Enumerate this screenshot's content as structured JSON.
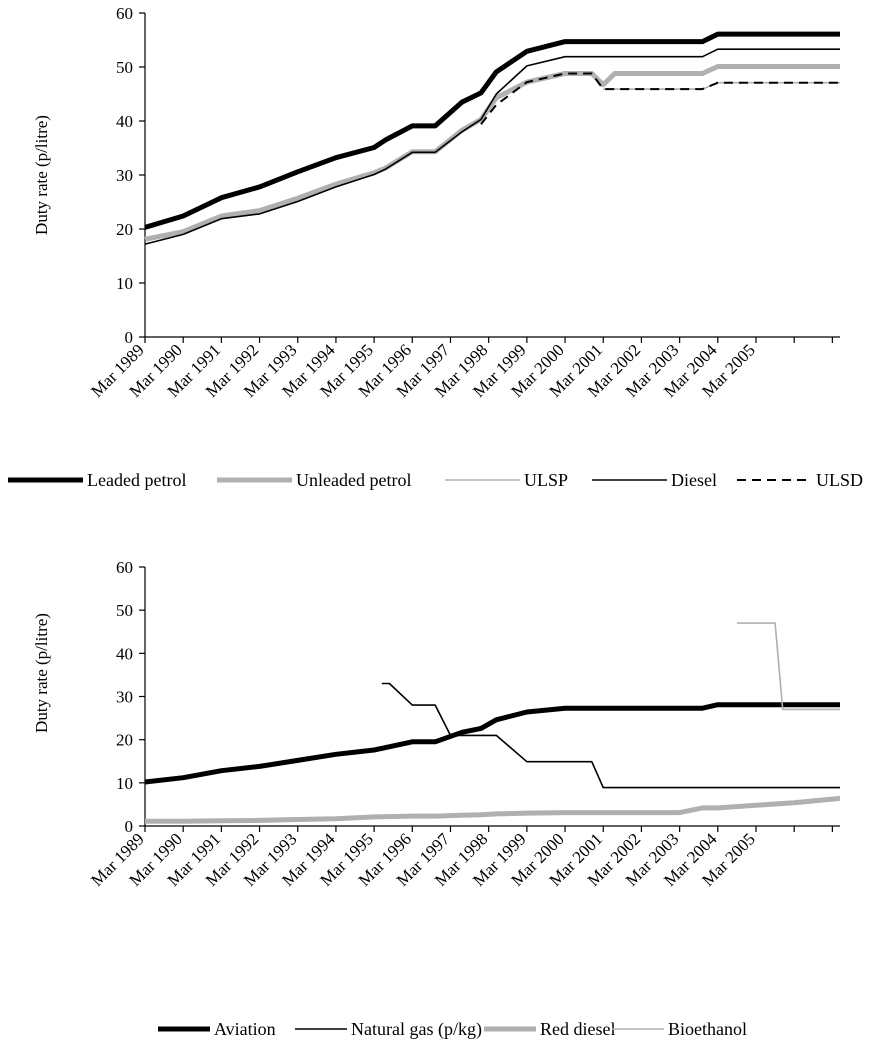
{
  "chart_data": [
    {
      "type": "line",
      "title": "",
      "xlabel": "",
      "ylabel": "Duty rate (p/litre)",
      "ylim": [
        0,
        60
      ],
      "yticks": [
        0,
        10,
        20,
        30,
        40,
        50,
        60
      ],
      "xlim": [
        1989,
        2007.2
      ],
      "categories": [
        "Mar 1989",
        "Mar 1990",
        "Mar 1991",
        "Mar 1992",
        "Mar 1993",
        "Mar 1994",
        "Mar 1995",
        "Mar 1996",
        "Mar 1997",
        "Mar 1998",
        "Mar 1999",
        "Mar 2000",
        "Mar 2001",
        "Mar 2002",
        "Mar 2003",
        "Mar 2004",
        "Mar 2005"
      ],
      "legend_position": "bottom",
      "series": [
        {
          "name": "Leaded petrol",
          "color": "#000000",
          "width": 5,
          "dash": "",
          "x": [
            1989,
            1990,
            1991,
            1992,
            1993,
            1994,
            1995,
            1995.3,
            1996,
            1996.6,
            1997.3,
            1997.8,
            1998.2,
            1999,
            2000,
            2001,
            2002,
            2003.6,
            2004,
            2007.2
          ],
          "y": [
            20.3,
            22.4,
            25.8,
            27.8,
            30.6,
            33.2,
            35.1,
            36.5,
            39.1,
            39.1,
            43.5,
            45.2,
            49.1,
            52.9,
            54.7,
            54.7,
            54.7,
            54.7,
            56.1,
            56.1
          ]
        },
        {
          "name": "Unleaded petrol",
          "color": "#b0b0b0",
          "width": 5,
          "dash": "",
          "x": [
            1989,
            1990,
            1991,
            1992,
            1993,
            1994,
            1995,
            1995.3,
            1996,
            1996.6,
            1997.3,
            1997.8,
            1998.2,
            1999,
            2000,
            2000.7,
            2001,
            2001.3,
            2003.6,
            2004,
            2007.2
          ],
          "y": [
            18.1,
            19.5,
            22.4,
            23.4,
            25.7,
            28.3,
            30.4,
            31.3,
            34.3,
            34.3,
            38.3,
            40.3,
            44.3,
            47.2,
            48.8,
            48.8,
            46.7,
            48.8,
            48.8,
            50.1,
            50.1
          ]
        },
        {
          "name": "ULSP",
          "color": "#b0b0b0",
          "width": 1.6,
          "dash": "",
          "x": [
            2001,
            2001.3,
            2003.6,
            2004,
            2007.2
          ],
          "y": [
            45.9,
            45.9,
            45.9,
            47.1,
            47.1
          ]
        },
        {
          "name": "Diesel",
          "color": "#000000",
          "width": 1.6,
          "dash": "",
          "x": [
            1989,
            1990,
            1991,
            1992,
            1993,
            1994,
            1995,
            1995.3,
            1996,
            1996.6,
            1997.3,
            1997.8,
            1998.2,
            1999,
            2000,
            2001,
            2002,
            2003.6,
            2004,
            2007.2
          ],
          "y": [
            17.2,
            19.0,
            21.9,
            22.8,
            25.1,
            27.8,
            30.1,
            31.1,
            34.2,
            34.2,
            38.0,
            40.3,
            45.0,
            50.2,
            51.9,
            51.9,
            51.9,
            51.9,
            53.3,
            53.3
          ]
        },
        {
          "name": "ULSD",
          "color": "#000000",
          "width": 2,
          "dash": "9,6",
          "x": [
            1997.8,
            1998.2,
            1999,
            2000,
            2000.7,
            2001,
            2001.3,
            2003.6,
            2004,
            2007.2
          ],
          "y": [
            39.4,
            43.0,
            47.2,
            48.8,
            48.8,
            45.9,
            45.9,
            45.9,
            47.1,
            47.1
          ]
        }
      ]
    },
    {
      "type": "line",
      "title": "",
      "xlabel": "",
      "ylabel": "Duty rate (p/litre)",
      "ylim": [
        0,
        60
      ],
      "yticks": [
        0,
        10,
        20,
        30,
        40,
        50,
        60
      ],
      "xlim": [
        1989,
        2007.2
      ],
      "categories": [
        "Mar 1989",
        "Mar 1990",
        "Mar 1991",
        "Mar 1992",
        "Mar 1993",
        "Mar 1994",
        "Mar 1995",
        "Mar 1996",
        "Mar 1997",
        "Mar 1998",
        "Mar 1999",
        "Mar 2000",
        "Mar 2001",
        "Mar 2002",
        "Mar 2003",
        "Mar 2004",
        "Mar 2005"
      ],
      "legend_position": "bottom",
      "series": [
        {
          "name": "Aviation",
          "color": "#000000",
          "width": 5,
          "dash": "",
          "x": [
            1989,
            1990,
            1991,
            1992,
            1993,
            1994,
            1995,
            1996,
            1996.6,
            1997.3,
            1997.8,
            1998.2,
            1999,
            2000,
            2001,
            2002,
            2003.6,
            2004,
            2007.2
          ],
          "y": [
            10.2,
            11.2,
            12.8,
            13.8,
            15.2,
            16.6,
            17.6,
            19.5,
            19.5,
            21.7,
            22.6,
            24.6,
            26.4,
            27.3,
            27.3,
            27.3,
            27.3,
            28.1,
            28.1
          ]
        },
        {
          "name": "Natural gas (p/kg)",
          "color": "#000000",
          "width": 1.6,
          "dash": "",
          "x": [
            1995.2,
            1995.4,
            1996,
            1996.6,
            1997,
            1997.8,
            1998.2,
            1999,
            2000,
            2000.7,
            2001,
            2002,
            2003.6,
            2004,
            2007.2
          ],
          "y": [
            33.0,
            33.0,
            28.0,
            28.0,
            21.0,
            21.0,
            21.0,
            14.9,
            14.9,
            14.9,
            8.9,
            8.9,
            8.9,
            8.9,
            8.9
          ]
        },
        {
          "name": "Red diesel",
          "color": "#b0b0b0",
          "width": 5,
          "dash": "",
          "x": [
            1989,
            1990,
            1991,
            1992,
            1993,
            1994,
            1995,
            1996,
            1996.6,
            1997.3,
            1997.8,
            1998.2,
            1999,
            2000,
            2001,
            2002,
            2003,
            2003.6,
            2004,
            2005,
            2006,
            2007.2
          ],
          "y": [
            1.1,
            1.1,
            1.2,
            1.3,
            1.5,
            1.7,
            2.1,
            2.3,
            2.3,
            2.5,
            2.6,
            2.8,
            3.0,
            3.1,
            3.1,
            3.1,
            3.1,
            4.2,
            4.2,
            4.8,
            5.4,
            6.4
          ]
        },
        {
          "name": "Bioethanol",
          "color": "#b0b0b0",
          "width": 1.6,
          "dash": "",
          "x": [
            2004.5,
            2005.5,
            2005.7,
            2007.2
          ],
          "y": [
            47.0,
            47.0,
            27.0,
            27.0
          ]
        }
      ]
    }
  ]
}
